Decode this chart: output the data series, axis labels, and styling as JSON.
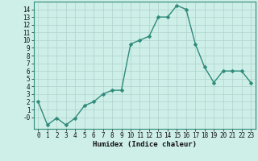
{
  "x": [
    0,
    1,
    2,
    3,
    4,
    5,
    6,
    7,
    8,
    9,
    10,
    11,
    12,
    13,
    14,
    15,
    16,
    17,
    18,
    19,
    20,
    21,
    22,
    23
  ],
  "y": [
    2,
    -1,
    -0.1,
    -1,
    -0.1,
    1.5,
    2,
    3,
    3.5,
    3.5,
    9.5,
    10,
    10.5,
    13,
    13,
    14.5,
    14,
    9.5,
    6.5,
    4.5,
    6,
    6,
    6,
    4.5
  ],
  "line_color": "#2e8b7a",
  "marker_color": "#2e8b7a",
  "bg_color": "#ceeee8",
  "grid_color": "#aed4cc",
  "xlabel": "Humidex (Indice chaleur)",
  "xlim": [
    -0.5,
    23.5
  ],
  "ylim": [
    -1.5,
    15.0
  ],
  "yticks": [
    0,
    1,
    2,
    3,
    4,
    5,
    6,
    7,
    8,
    9,
    10,
    11,
    12,
    13,
    14
  ],
  "xticks": [
    0,
    1,
    2,
    3,
    4,
    5,
    6,
    7,
    8,
    9,
    10,
    11,
    12,
    13,
    14,
    15,
    16,
    17,
    18,
    19,
    20,
    21,
    22,
    23
  ],
  "xtick_labels": [
    "0",
    "1",
    "2",
    "3",
    "4",
    "5",
    "6",
    "7",
    "8",
    "9",
    "10",
    "11",
    "12",
    "13",
    "14",
    "15",
    "16",
    "17",
    "18",
    "19",
    "20",
    "21",
    "22",
    "23"
  ],
  "ytick_labels": [
    "14",
    "13",
    "12",
    "11",
    "10",
    "9",
    "8",
    "7",
    "6",
    "5",
    "4",
    "3",
    "2",
    "1",
    "-0"
  ],
  "ytick_vals": [
    14,
    13,
    12,
    11,
    10,
    9,
    8,
    7,
    6,
    5,
    4,
    3,
    2,
    1,
    0
  ],
  "label_fontsize": 6.5,
  "tick_fontsize": 5.5,
  "linewidth": 1.0,
  "markersize": 2.5
}
